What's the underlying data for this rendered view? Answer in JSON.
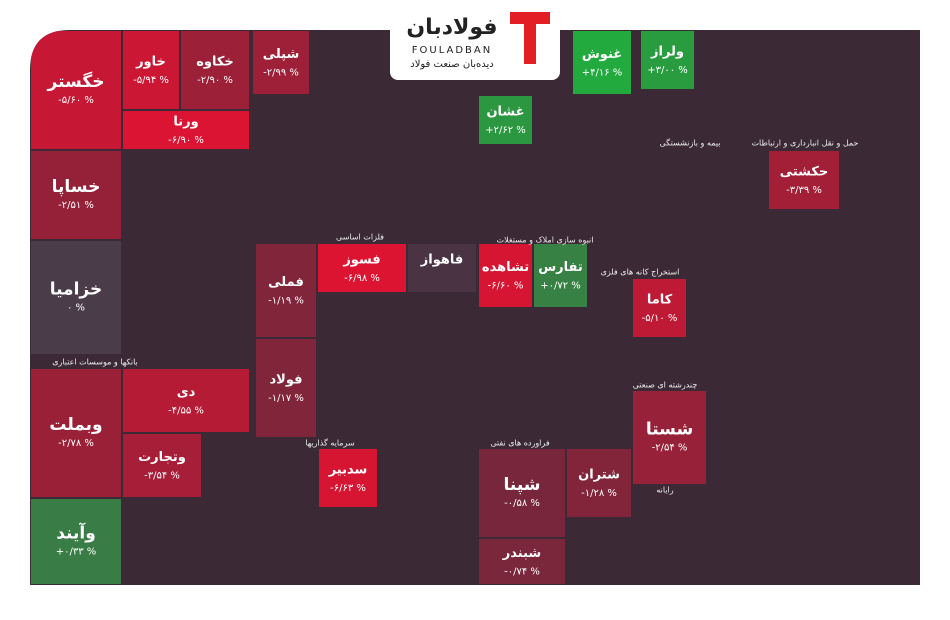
{
  "logo": {
    "name": "فولادبان",
    "latin": "FOULADBAN",
    "tagline": "دیده‌بان صنعت فولاد"
  },
  "chart_data": {
    "type": "treemap",
    "categories": [
      "خگستر",
      "خساپا",
      "خزامیا",
      "خاور",
      "خکاوه",
      "ورنا",
      "وبملت",
      "وآیند",
      "دی",
      "وتجارت",
      "شپلی",
      "فملی",
      "فولاد",
      "فسوز",
      "فاهواز",
      "شپنا",
      "شتران",
      "شبندر",
      "تشاهده",
      "تفارس",
      "شستا",
      "کاما",
      "حکشتی",
      "غنوش",
      "غشان",
      "ولراز",
      "سدبیر"
    ],
    "values": [
      -5.6,
      -2.51,
      0,
      -5.94,
      -2.9,
      -6.9,
      -2.78,
      0.33,
      -4.55,
      -3.54,
      -2.99,
      -1.19,
      -1.17,
      -6.98,
      null,
      -0.58,
      -1.28,
      -0.74,
      -6.6,
      0.72,
      -2.54,
      -5.1,
      -3.39,
      4.16,
      2.62,
      3.0,
      -6.63
    ],
    "value_labels": [
      "-۵/۶۰ %",
      "-۲/۵۱ %",
      "۰ %",
      "-۵/۹۴ %",
      "-۲/۹۰ %",
      "-۶/۹۰ %",
      "-۲/۷۸ %",
      "+۰/۳۳ %",
      "-۴/۵۵ %",
      "-۳/۵۴ %",
      "-۲/۹۹ %",
      "-۱/۱۹ %",
      "-۱/۱۷ %",
      "-۶/۹۸ %",
      null,
      "-۰/۵۸ %",
      "-۱/۲۸ %",
      "-۰/۷۴ %",
      "-۶/۶۰ %",
      "+۰/۷۲ %",
      "-۲/۵۴ %",
      "-۵/۱۰ %",
      "-۳/۳۹ %",
      "+۴/۱۶ %",
      "+۲/۶۲ %",
      "+۳/۰۰ %",
      "-۶/۶۳ %"
    ],
    "sectors": [
      "بانکها و موسسات اعتباری",
      "فلزات اساسی",
      "سرمایه گذاریها",
      "انبوه سازی املاک و مستغلات",
      "فراورده های نفتی",
      "چندرشته ای صنعتی",
      "استخراج کانه های فلزی",
      "بیمه و بازنشستگی",
      "حمل و نقل انبارداری و ارتباطات",
      "رایانه"
    ]
  }
}
